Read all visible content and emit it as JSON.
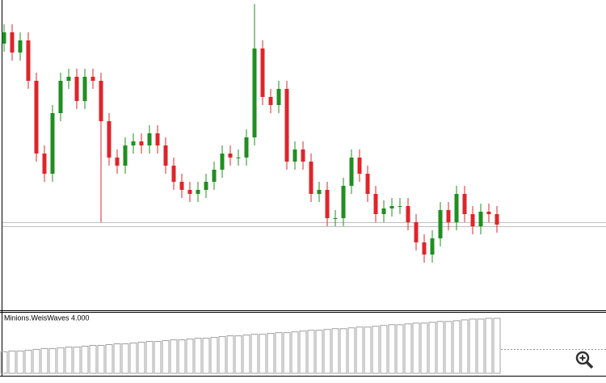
{
  "chart_data": {
    "type": "candlestick",
    "up_color": "#1f8f1f",
    "down_color": "#e0242a",
    "ylim": [
      0,
      384
    ],
    "open": [
      330,
      344,
      319,
      334,
      284,
      194,
      169,
      244,
      284,
      289,
      259,
      289,
      284,
      234,
      189,
      179,
      204,
      209,
      204,
      219,
      204,
      179,
      159,
      149,
      144,
      149,
      159,
      174,
      194,
      189,
      189,
      214,
      324,
      264,
      254,
      274,
      184,
      199,
      184,
      144,
      149,
      114,
      114,
      154,
      189,
      169,
      144,
      119,
      126,
      129,
      129,
      109,
      84,
      69,
      89,
      124,
      109,
      144,
      119,
      104,
      122,
      119
    ],
    "high": [
      354,
      354,
      344,
      344,
      294,
      204,
      254,
      294,
      299,
      299,
      299,
      299,
      294,
      244,
      199,
      214,
      219,
      219,
      229,
      229,
      214,
      189,
      169,
      159,
      159,
      169,
      184,
      204,
      204,
      199,
      224,
      379,
      334,
      274,
      284,
      284,
      209,
      209,
      194,
      159,
      159,
      124,
      164,
      199,
      199,
      179,
      154,
      136,
      139,
      139,
      139,
      119,
      94,
      99,
      134,
      134,
      154,
      154,
      129,
      132,
      132,
      129
    ],
    "low": [
      320,
      309,
      309,
      274,
      184,
      159,
      159,
      234,
      274,
      249,
      249,
      274,
      109,
      179,
      169,
      169,
      194,
      194,
      194,
      194,
      169,
      149,
      139,
      134,
      134,
      139,
      149,
      164,
      179,
      179,
      179,
      204,
      254,
      244,
      244,
      174,
      174,
      174,
      134,
      134,
      104,
      104,
      104,
      144,
      159,
      134,
      109,
      109,
      116,
      119,
      99,
      74,
      59,
      59,
      79,
      99,
      99,
      109,
      94,
      94,
      109,
      96
    ],
    "close": [
      344,
      319,
      334,
      284,
      194,
      169,
      244,
      284,
      289,
      259,
      289,
      284,
      234,
      189,
      179,
      204,
      209,
      204,
      219,
      204,
      179,
      159,
      149,
      144,
      149,
      159,
      174,
      194,
      189,
      189,
      214,
      324,
      264,
      254,
      274,
      184,
      199,
      184,
      144,
      149,
      114,
      114,
      154,
      189,
      169,
      144,
      119,
      126,
      129,
      129,
      109,
      84,
      69,
      89,
      124,
      109,
      144,
      119,
      104,
      122,
      119,
      106
    ],
    "hlines": [
      109,
      104
    ],
    "indicator": {
      "type": "bar",
      "title": "Minions.WeisWaves 4.000",
      "color": "#a0a0a0",
      "ylim": [
        0,
        76
      ],
      "values": [
        27,
        28,
        28,
        29,
        30,
        31,
        31,
        32,
        33,
        33,
        34,
        35,
        35,
        36,
        37,
        37,
        38,
        39,
        40,
        40,
        41,
        42,
        42,
        43,
        44,
        44,
        45,
        46,
        47,
        47,
        48,
        49,
        49,
        50,
        51,
        51,
        52,
        53,
        54,
        54,
        55,
        56,
        56,
        57,
        58,
        58,
        59,
        60,
        61,
        61,
        62,
        63,
        63,
        64,
        65,
        65,
        66,
        67,
        68,
        68,
        69,
        69
      ]
    }
  }
}
